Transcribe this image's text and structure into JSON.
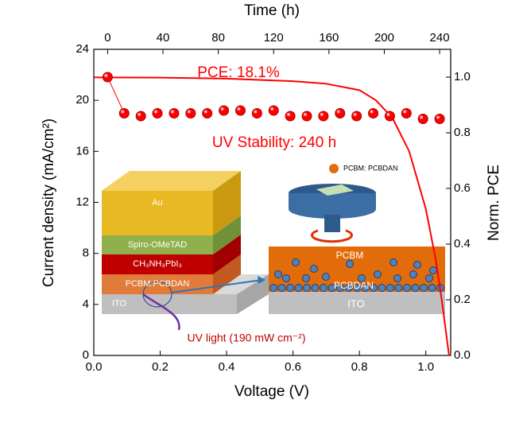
{
  "chart_data": {
    "type": "line",
    "x_label": "Voltage (V)",
    "y_label": "Current density (mA/cm²)",
    "x2_label": "Time (h)",
    "y2_label": "Norm. PCE",
    "xlim": [
      0,
      1.075
    ],
    "xticks": [
      {
        "value": 0,
        "label": "0.0"
      },
      {
        "value": 0.2,
        "label": "0.2"
      },
      {
        "value": 0.4,
        "label": "0.4"
      },
      {
        "value": 0.6,
        "label": "0.6"
      },
      {
        "value": 0.8,
        "label": "0.8"
      },
      {
        "value": 1.0,
        "label": "1.0"
      }
    ],
    "ylim": [
      0,
      24
    ],
    "yticks": [
      0,
      4,
      8,
      12,
      16,
      20,
      24
    ],
    "x2lim": [
      -10,
      248
    ],
    "x2ticks": [
      0,
      40,
      80,
      120,
      160,
      200,
      240
    ],
    "y2lim": [
      0,
      1.1
    ],
    "y2ticks": [
      {
        "value": 0,
        "label": "0.0"
      },
      {
        "value": 0.2,
        "label": "0.2"
      },
      {
        "value": 0.4,
        "label": "0.4"
      },
      {
        "value": 0.6,
        "label": "0.6"
      },
      {
        "value": 0.8,
        "label": "0.8"
      },
      {
        "value": 1.0,
        "label": "1.0"
      }
    ],
    "series": [
      {
        "color": "#ff0000",
        "style": "line",
        "x": [
          0,
          0.2,
          0.4,
          0.6,
          0.7,
          0.8,
          0.85,
          0.9,
          0.95,
          1.0,
          1.03,
          1.05,
          1.07
        ],
        "values": [
          21.8,
          21.78,
          21.7,
          21.5,
          21.3,
          20.8,
          20.0,
          18.6,
          16.0,
          11.5,
          7.5,
          4.0,
          0
        ]
      },
      {
        "color": "#ff0000",
        "style": "markers",
        "axis": "y2",
        "x": [
          0,
          12,
          24,
          36,
          48,
          60,
          72,
          84,
          96,
          108,
          120,
          132,
          144,
          156,
          168,
          180,
          192,
          204,
          216,
          228,
          240
        ],
        "values": [
          1.0,
          0.87,
          0.86,
          0.87,
          0.87,
          0.87,
          0.87,
          0.88,
          0.88,
          0.87,
          0.88,
          0.86,
          0.86,
          0.86,
          0.87,
          0.86,
          0.87,
          0.86,
          0.87,
          0.85,
          0.85
        ]
      }
    ],
    "annotations": {
      "pce": "PCE: 18.1%",
      "stability": "UV Stability:  240 h",
      "uv_light": "UV light (190 mW cm⁻²)"
    },
    "inset": {
      "au": "Au",
      "spiro": "Spiro-OMeTAD",
      "perovskite": "CH₃NH₃PbI₃",
      "etl": "PCBM:PCBDAN",
      "ito": "ITO",
      "legend": "PCBM: PCBDAN",
      "pcbm": "PCBM",
      "pcbdan": "PCBDAN",
      "ito2": "ITO"
    }
  }
}
